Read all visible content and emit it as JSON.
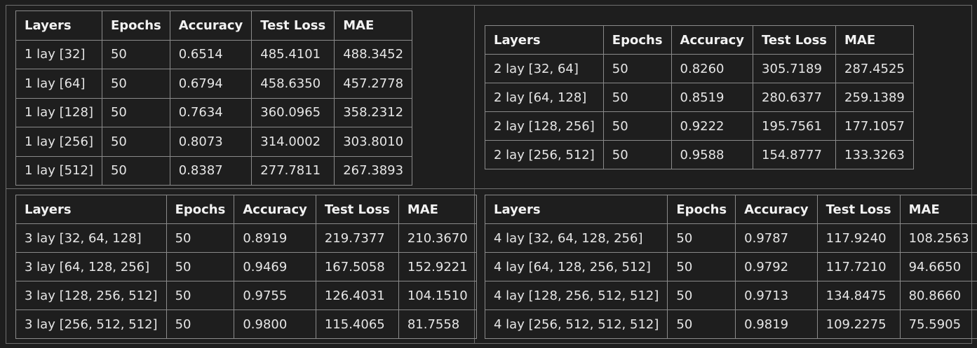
{
  "columns": [
    "Layers",
    "Epochs",
    "Accuracy",
    "Test Loss",
    "MAE"
  ],
  "tables": [
    {
      "rows": [
        [
          "1 lay [32]",
          "50",
          "0.6514",
          "485.4101",
          "488.3452"
        ],
        [
          "1 lay [64]",
          "50",
          "0.6794",
          "458.6350",
          "457.2778"
        ],
        [
          "1 lay [128]",
          "50",
          "0.7634",
          "360.0965",
          "358.2312"
        ],
        [
          "1 lay [256]",
          "50",
          "0.8073",
          "314.0002",
          "303.8010"
        ],
        [
          "1 lay [512]",
          "50",
          "0.8387",
          "277.7811",
          "267.3893"
        ]
      ]
    },
    {
      "rows": [
        [
          "2 lay [32, 64]",
          "50",
          "0.8260",
          "305.7189",
          "287.4525"
        ],
        [
          "2 lay [64, 128]",
          "50",
          "0.8519",
          "280.6377",
          "259.1389"
        ],
        [
          "2 lay [128, 256]",
          "50",
          "0.9222",
          "195.7561",
          "177.1057"
        ],
        [
          "2 lay [256, 512]",
          "50",
          "0.9588",
          "154.8777",
          "133.3263"
        ]
      ]
    },
    {
      "rows": [
        [
          "3 lay [32, 64, 128]",
          "50",
          "0.8919",
          "219.7377",
          "210.3670"
        ],
        [
          "3 lay [64, 128, 256]",
          "50",
          "0.9469",
          "167.5058",
          "152.9221"
        ],
        [
          "3 lay [128, 256, 512]",
          "50",
          "0.9755",
          "126.4031",
          "104.1510"
        ],
        [
          "3 lay [256, 512, 512]",
          "50",
          "0.9800",
          "115.4065",
          "81.7558"
        ]
      ]
    },
    {
      "rows": [
        [
          "4 lay [32, 64, 128, 256]",
          "50",
          "0.9787",
          "117.9240",
          "108.2563"
        ],
        [
          "4 lay [64, 128, 256, 512]",
          "50",
          "0.9792",
          "117.7210",
          "94.6650"
        ],
        [
          "4 lay [128, 256, 512, 512]",
          "50",
          "0.9713",
          "134.8475",
          "80.8660"
        ],
        [
          "4 lay [256, 512, 512, 512]",
          "50",
          "0.9819",
          "109.2275",
          "75.5905"
        ]
      ]
    }
  ]
}
